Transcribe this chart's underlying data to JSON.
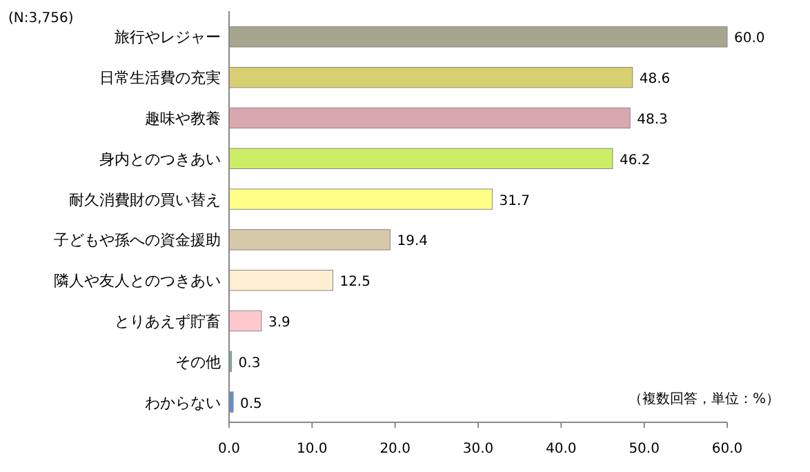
{
  "chart_data": {
    "type": "bar",
    "orientation": "horizontal",
    "categories": [
      "旅行やレジャー",
      "日常生活費の充実",
      "趣味や教養",
      "身内とのつきあい",
      "耐久消費財の買い替え",
      "子どもや孫への資金援助",
      "隣人や友人とのつきあい",
      "とりあえず貯畜",
      "その他",
      "わからない"
    ],
    "values": [
      60.0,
      48.6,
      48.3,
      46.2,
      31.7,
      19.4,
      12.5,
      3.9,
      0.3,
      0.5
    ],
    "colors": [
      "#a6a68e",
      "#d8d070",
      "#d9a8ae",
      "#ccee66",
      "#ffff88",
      "#d8c8aa",
      "#ffeed0",
      "#ffc8cc",
      "#80b0a8",
      "#6090d0"
    ],
    "value_labels": [
      "60.0",
      "48.6",
      "48.3",
      "46.2",
      "31.7",
      "19.4",
      "12.5",
      "3.9",
      "0.3",
      "0.5"
    ],
    "xlim": [
      0,
      60
    ],
    "xticks": [
      {
        "value": 0,
        "label": "0.0"
      },
      {
        "value": 10,
        "label": "10.0"
      },
      {
        "value": 20,
        "label": "20.0"
      },
      {
        "value": 30,
        "label": "30.0"
      },
      {
        "value": 40,
        "label": "40.0"
      },
      {
        "value": 50,
        "label": "50.0"
      },
      {
        "value": 60,
        "label": "60.0"
      }
    ],
    "grid": false,
    "annotations": [
      "(N:3,756)",
      "（複数回答，単位：%）"
    ]
  }
}
